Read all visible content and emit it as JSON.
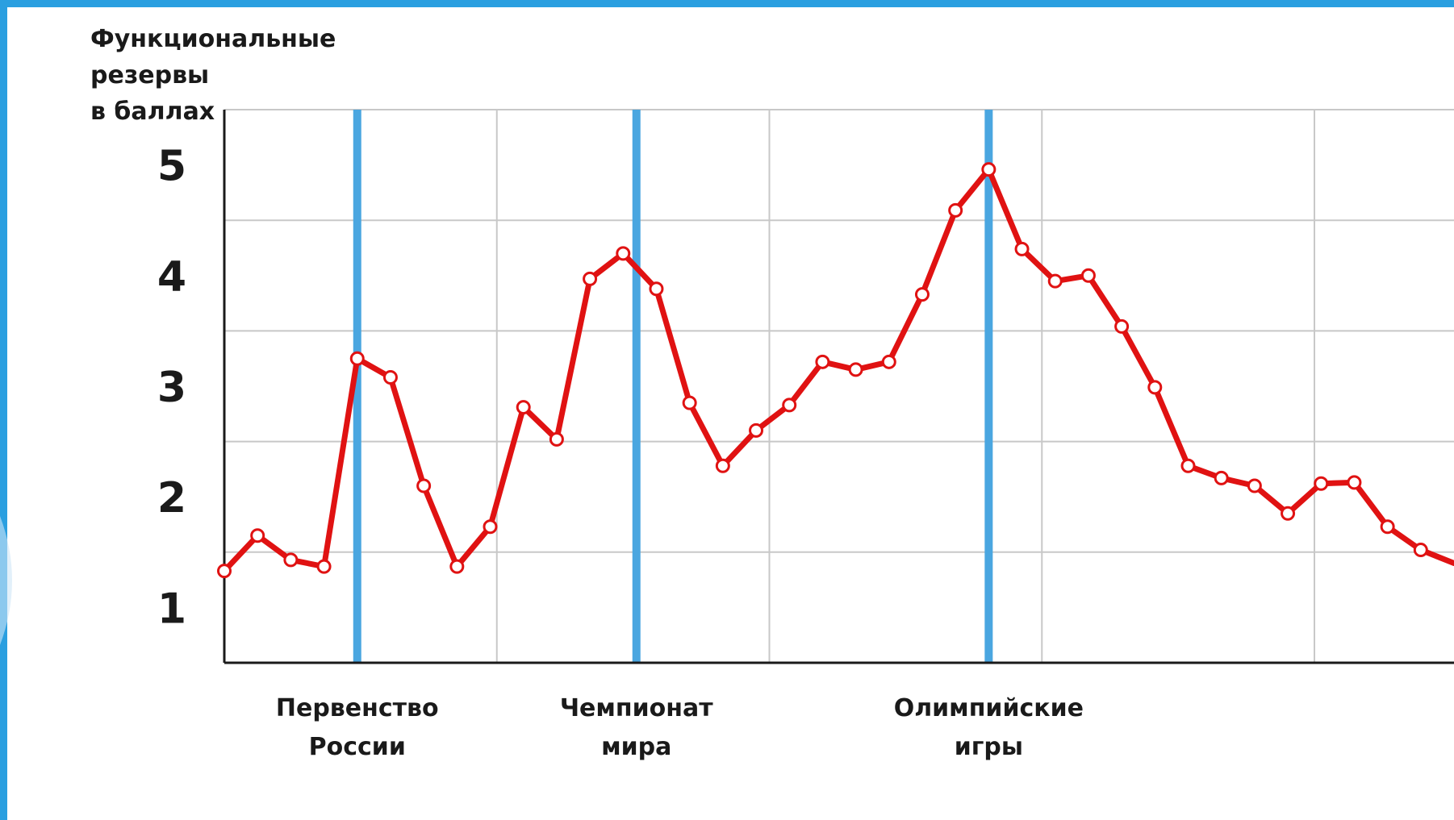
{
  "chart_data": {
    "type": "line",
    "ylabel_lines": [
      "Функциональные",
      "резервы",
      "в баллах"
    ],
    "yticks": [
      1,
      2,
      3,
      4,
      5
    ],
    "ylim": [
      0.5,
      5.5
    ],
    "x": [
      0,
      1,
      2,
      3,
      4,
      5,
      6,
      7,
      8,
      9,
      10,
      11,
      12,
      13,
      14,
      15,
      16,
      17,
      18,
      19,
      20,
      21,
      22,
      23,
      24,
      25,
      26,
      27,
      28,
      29,
      30,
      31,
      32,
      33,
      34,
      35,
      36,
      37
    ],
    "xlim": [
      0,
      37
    ],
    "grid": true,
    "series": [
      {
        "values": [
          1.33,
          1.65,
          1.43,
          1.37,
          3.25,
          3.08,
          2.1,
          1.37,
          1.73,
          2.81,
          2.52,
          3.97,
          4.2,
          3.88,
          2.85,
          2.28,
          2.6,
          2.83,
          3.22,
          3.15,
          3.22,
          3.83,
          4.59,
          4.96,
          4.24,
          3.95,
          4.0,
          3.54,
          2.99,
          2.28,
          2.17,
          2.1,
          1.85,
          2.12,
          2.13,
          1.73,
          1.52,
          1.4
        ],
        "color": "#e01212"
      }
    ],
    "events": [
      {
        "label_lines": [
          "Первенство",
          "России"
        ],
        "x": 4,
        "color": "#4aa6e0"
      },
      {
        "label_lines": [
          "Чемпионат",
          "мира"
        ],
        "x": 12.4,
        "color": "#4aa6e0"
      },
      {
        "label_lines": [
          "Олимпийские",
          "игры"
        ],
        "x": 23,
        "color": "#4aa6e0"
      }
    ]
  }
}
